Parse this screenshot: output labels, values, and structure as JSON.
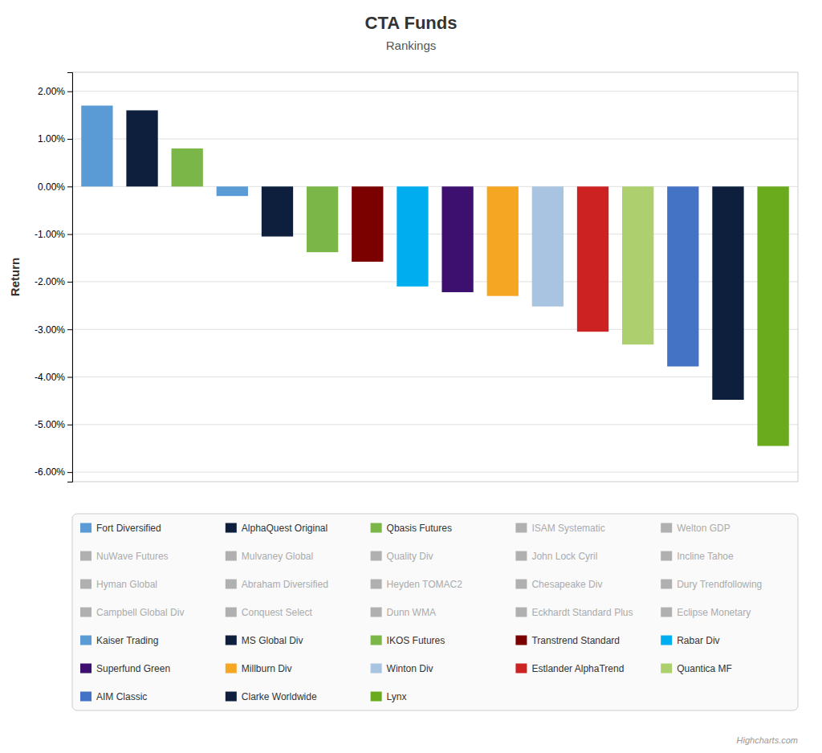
{
  "chart_data": {
    "type": "bar",
    "title": "CTA Funds",
    "subtitle": "Rankings",
    "ylabel": "Return",
    "ylim": [
      -6.2,
      2.4
    ],
    "yticks": [
      {
        "value": -6.0,
        "label": "-6.00%"
      },
      {
        "value": -5.0,
        "label": "-5.00%"
      },
      {
        "value": -4.0,
        "label": "-4.00%"
      },
      {
        "value": -3.0,
        "label": "-3.00%"
      },
      {
        "value": -2.0,
        "label": "-2.00%"
      },
      {
        "value": -1.0,
        "label": "-1.00%"
      },
      {
        "value": 0.0,
        "label": "0.00%"
      },
      {
        "value": 1.0,
        "label": "1.00%"
      },
      {
        "value": 2.0,
        "label": "2.00%"
      }
    ],
    "grid": true,
    "legend": "bottom",
    "tick_labels": "y",
    "annotations": [
      "Highcharts.com"
    ],
    "series": [
      {
        "name": "Fort Diversified",
        "color": "#5B9BD5",
        "values": [
          1.7
        ]
      },
      {
        "name": "AlphaQuest Original",
        "color": "#0D1F3C",
        "values": [
          1.6
        ]
      },
      {
        "name": "Qbasis Futures",
        "color": "#7AB648",
        "values": [
          0.8
        ]
      },
      {
        "name": "ISAM Systematic",
        "color": "#b0b0b0",
        "values": [
          null
        ]
      },
      {
        "name": "Welton GDP",
        "color": "#b0b0b0",
        "values": [
          null
        ]
      },
      {
        "name": "NuWave Futures",
        "color": "#b0b0b0",
        "values": [
          null
        ]
      },
      {
        "name": "Mulvaney Global",
        "color": "#b0b0b0",
        "values": [
          null
        ]
      },
      {
        "name": "Quality Div",
        "color": "#b0b0b0",
        "values": [
          null
        ]
      },
      {
        "name": "John Lock Cyril",
        "color": "#b0b0b0",
        "values": [
          null
        ]
      },
      {
        "name": "Incline Tahoe",
        "color": "#b0b0b0",
        "values": [
          null
        ]
      },
      {
        "name": "Hyman Global",
        "color": "#b0b0b0",
        "values": [
          null
        ]
      },
      {
        "name": "Abraham Diversified",
        "color": "#b0b0b0",
        "values": [
          null
        ]
      },
      {
        "name": "Heyden TOMAC2",
        "color": "#b0b0b0",
        "values": [
          null
        ]
      },
      {
        "name": "Chesapeake Div",
        "color": "#b0b0b0",
        "values": [
          null
        ]
      },
      {
        "name": "Dury Trendfollowing",
        "color": "#b0b0b0",
        "values": [
          null
        ]
      },
      {
        "name": "Campbell Global Div",
        "color": "#b0b0b0",
        "values": [
          null
        ]
      },
      {
        "name": "Conquest Select",
        "color": "#b0b0b0",
        "values": [
          null
        ]
      },
      {
        "name": "Dunn WMA",
        "color": "#b0b0b0",
        "values": [
          null
        ]
      },
      {
        "name": "Eckhardt Standard Plus",
        "color": "#b0b0b0",
        "values": [
          null
        ]
      },
      {
        "name": "Eclipse Monetary",
        "color": "#b0b0b0",
        "values": [
          null
        ]
      },
      {
        "name": "Kaiser Trading",
        "color": "#5B9BD5",
        "values": [
          -0.2
        ]
      },
      {
        "name": "MS Global Div",
        "color": "#0D1F3C",
        "values": [
          -1.05
        ]
      },
      {
        "name": "IKOS Futures",
        "color": "#7AB648",
        "values": [
          -1.38
        ]
      },
      {
        "name": "Transtrend Standard",
        "color": "#7B0000",
        "values": [
          -1.58
        ]
      },
      {
        "name": "Rabar Div",
        "color": "#00AEEF",
        "values": [
          -2.1
        ]
      },
      {
        "name": "Superfund Green",
        "color": "#3D1070",
        "values": [
          -2.22
        ]
      },
      {
        "name": "Millburn Div",
        "color": "#F5A623",
        "values": [
          -2.3
        ]
      },
      {
        "name": "Winton Div",
        "color": "#A8C4E0",
        "values": [
          -2.52
        ]
      },
      {
        "name": "Estlander AlphaTrend",
        "color": "#CC2222",
        "values": [
          -3.05
        ]
      },
      {
        "name": "Quantica MF",
        "color": "#AECF6E",
        "values": [
          -3.32
        ]
      },
      {
        "name": "AIM Classic",
        "color": "#4472C4",
        "values": [
          -3.78
        ]
      },
      {
        "name": "Clarke Worldwide",
        "color": "#0D1F3C",
        "values": [
          -4.48
        ]
      },
      {
        "name": "Lynx",
        "color": "#6AAB1E",
        "values": [
          -5.45
        ]
      }
    ]
  }
}
